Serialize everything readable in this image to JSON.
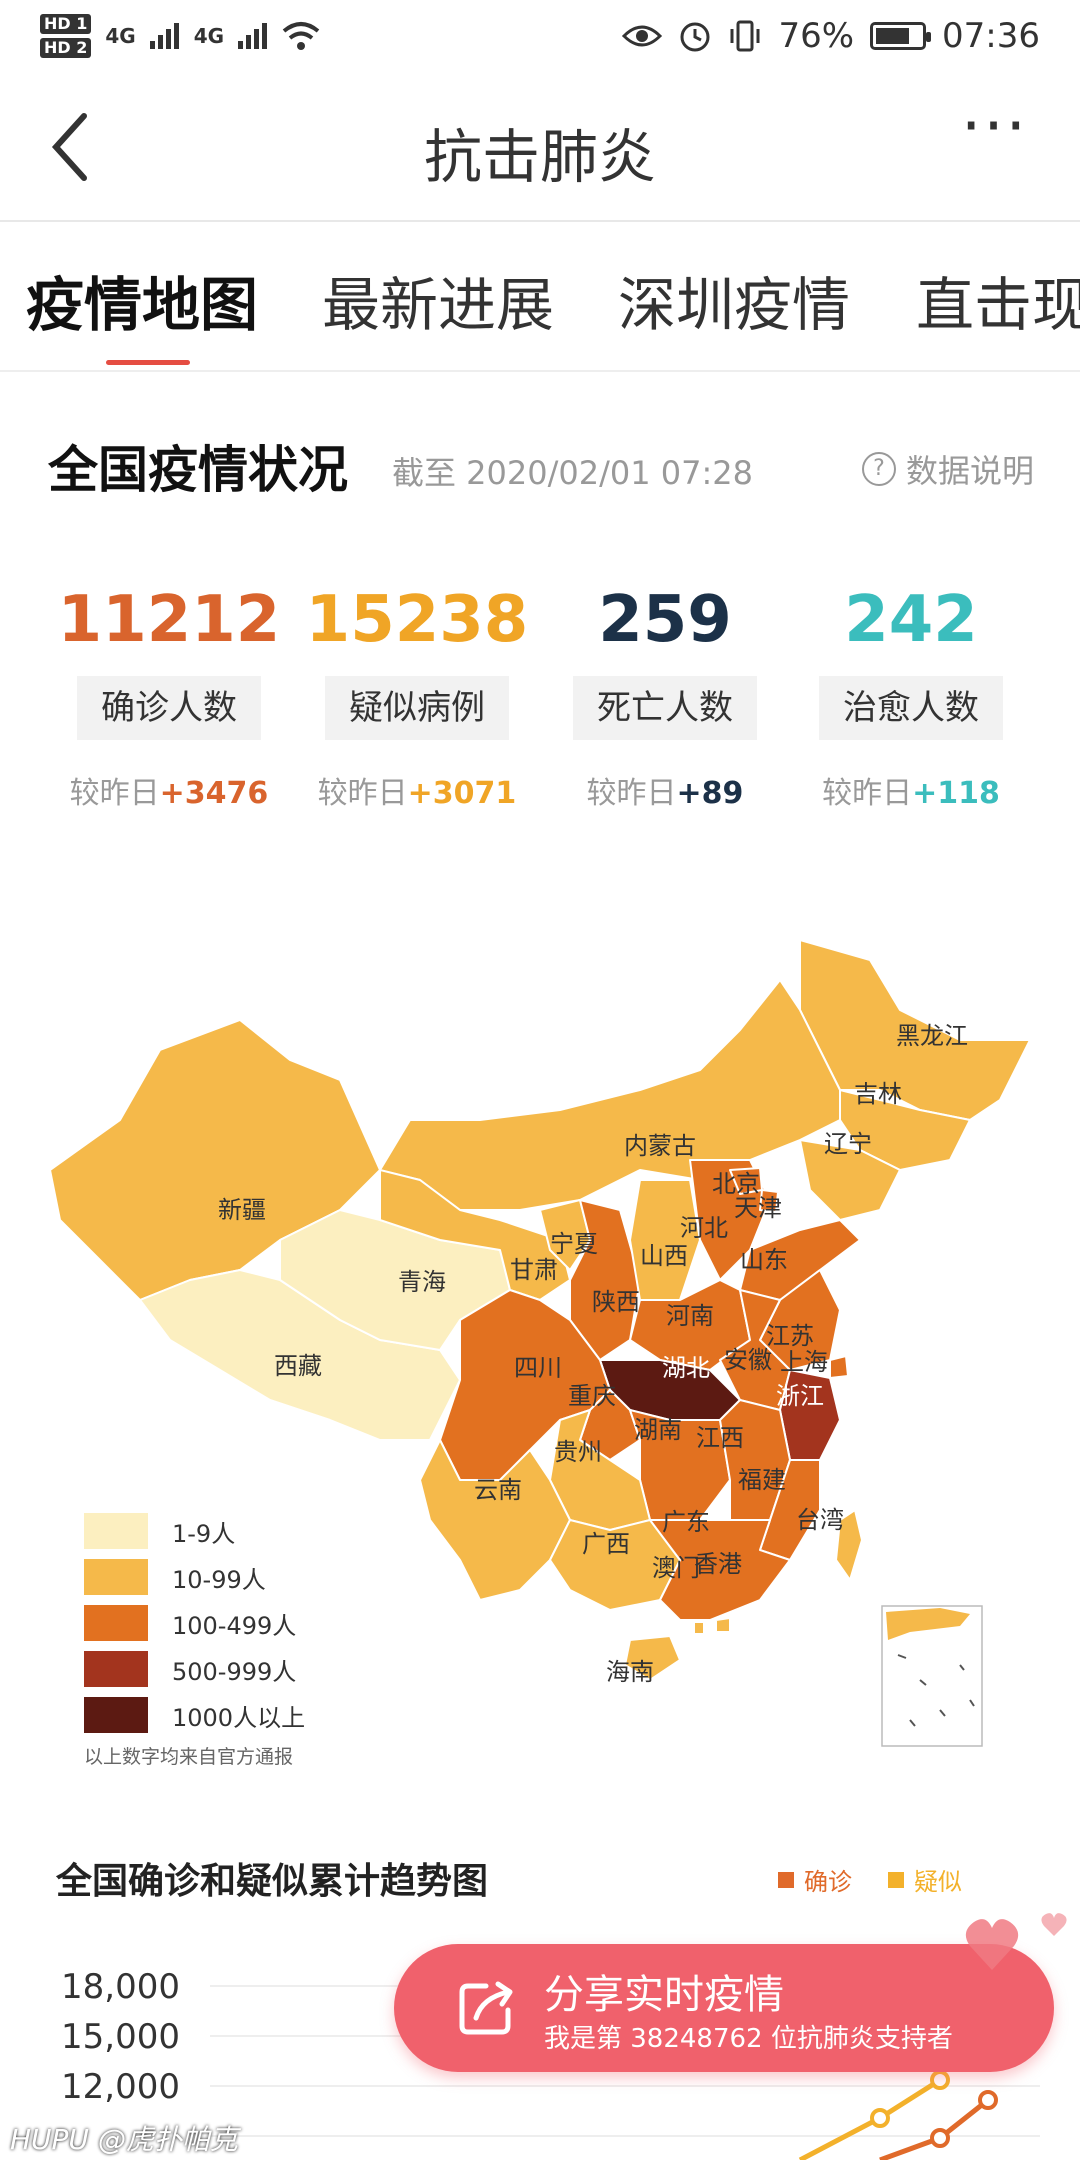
{
  "status_bar": {
    "hd1": "HD 1",
    "hd2": "HD 2",
    "network1": "4G",
    "network2": "4G",
    "battery_percent": "76%",
    "battery_level": 0.76,
    "time": "07:36"
  },
  "header": {
    "back_icon": "chevron-left-icon",
    "title": "抗击肺炎",
    "more_icon": "more-dots-icon",
    "more_glyph": "···"
  },
  "tabs": [
    {
      "label": "疫情地图",
      "active": true
    },
    {
      "label": "最新进展",
      "active": false
    },
    {
      "label": "深圳疫情",
      "active": false
    },
    {
      "label": "直击现",
      "active": false
    }
  ],
  "summary": {
    "title": "全国疫情状况",
    "timestamp": "截至 2020/02/01 07:28",
    "help_icon": "question-circle-icon",
    "help_label": "数据说明",
    "stats": [
      {
        "value": "11212",
        "label": "确诊人数",
        "delta_prefix": "较昨日",
        "delta": "+3476",
        "color": "#d9642d"
      },
      {
        "value": "15238",
        "label": "疑似病例",
        "delta_prefix": "较昨日",
        "delta": "+3071",
        "color": "#f0a526"
      },
      {
        "value": "259",
        "label": "死亡人数",
        "delta_prefix": "较昨日",
        "delta": "+89",
        "color": "#1c3148"
      },
      {
        "value": "242",
        "label": "治愈人数",
        "delta_prefix": "较昨日",
        "delta": "+118",
        "color": "#3bbdbd"
      }
    ]
  },
  "map": {
    "provinces": [
      "黑龙江",
      "吉林",
      "辽宁",
      "内蒙古",
      "北京",
      "天津",
      "河北",
      "新疆",
      "宁夏",
      "山西",
      "山东",
      "甘肃",
      "青海",
      "陕西",
      "河南",
      "江苏",
      "西藏",
      "四川",
      "湖北",
      "安徽",
      "上海",
      "重庆",
      "浙江",
      "湖南",
      "江西",
      "贵州",
      "福建",
      "云南",
      "广东",
      "台湾",
      "广西",
      "澳门",
      "香港",
      "海南"
    ],
    "legend": [
      {
        "label": "1-9人",
        "color": "#fcefc0"
      },
      {
        "label": "10-99人",
        "color": "#f5b94a"
      },
      {
        "label": "100-499人",
        "color": "#e27120"
      },
      {
        "label": "500-999人",
        "color": "#a3341e"
      },
      {
        "label": "1000人以上",
        "color": "#5c1a12"
      }
    ],
    "note": "以上数字均来自官方通报"
  },
  "trend": {
    "title": "全国确诊和疑似累计趋势图",
    "legend": [
      {
        "label": "确诊",
        "color": "#e06a2a"
      },
      {
        "label": "疑似",
        "color": "#f3b12b"
      }
    ],
    "y_ticks": [
      "18,000",
      "15,000",
      "12,000"
    ]
  },
  "share": {
    "icon": "share-icon",
    "title": "分享实时疫情",
    "subtitle": "我是第 38248762 位抗肺炎支持者"
  },
  "watermark": "HUPU @虎扑帕克"
}
